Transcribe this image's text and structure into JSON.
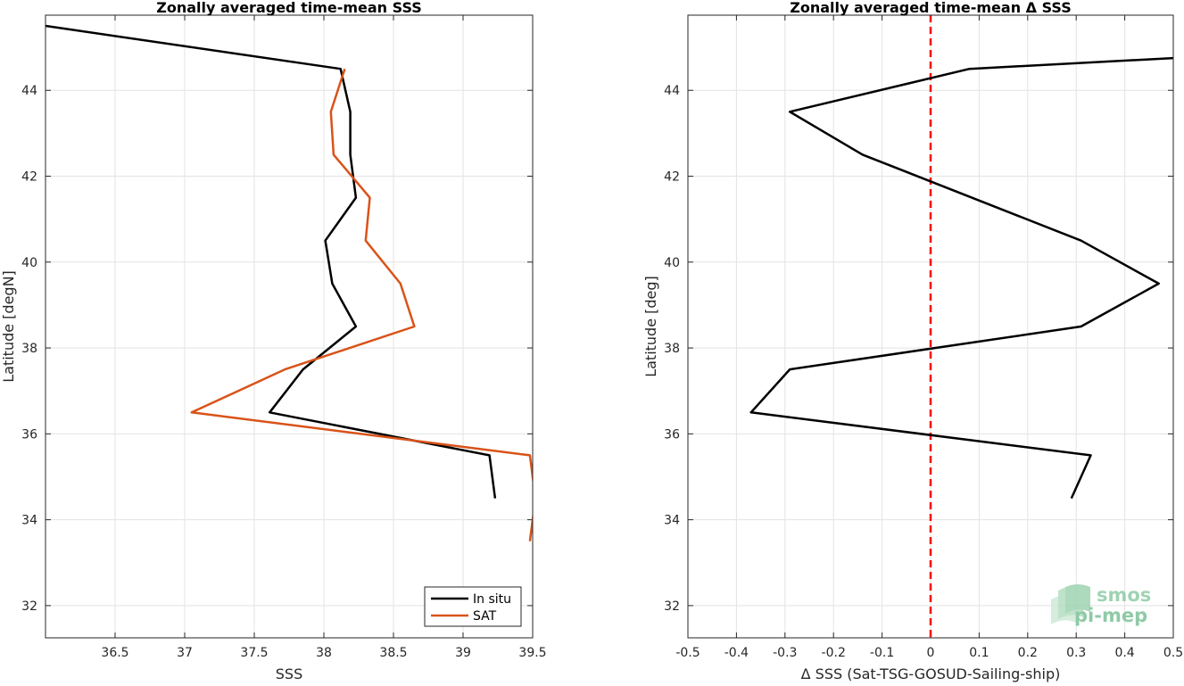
{
  "chart_data": [
    {
      "type": "line",
      "title": "Zonally averaged time-mean SSS",
      "xlabel": "SSS",
      "ylabel": "Latitude [degN]",
      "xlim": [
        36.0,
        39.5
      ],
      "ylim": [
        31.25,
        45.75
      ],
      "xticks": [
        36.5,
        37,
        37.5,
        38,
        38.5,
        39,
        39.5
      ],
      "xtick_labels": [
        "36.5",
        "37",
        "37.5",
        "38",
        "38.5",
        "39",
        "39.5"
      ],
      "yticks": [
        32,
        34,
        36,
        38,
        40,
        42,
        44
      ],
      "ytick_labels": [
        "32",
        "34",
        "36",
        "38",
        "40",
        "42",
        "44"
      ],
      "grid": true,
      "legend_position": "bottom-right",
      "series": [
        {
          "name": "In situ",
          "color": "#000000",
          "x": [
            36.0,
            38.12,
            38.19,
            38.19,
            38.23,
            38.01,
            38.06,
            38.23,
            37.85,
            37.61,
            39.19,
            39.23
          ],
          "y": [
            45.5,
            44.5,
            43.5,
            42.5,
            41.5,
            40.5,
            39.5,
            38.5,
            37.5,
            36.5,
            35.5,
            34.5
          ]
        },
        {
          "name": "SAT",
          "color": "#d95319",
          "x": [
            38.15,
            38.05,
            38.07,
            38.33,
            38.3,
            38.55,
            38.65,
            37.72,
            37.05,
            39.48,
            39.52,
            39.48
          ],
          "y": [
            44.5,
            43.5,
            42.5,
            41.5,
            40.5,
            39.5,
            38.5,
            37.5,
            36.5,
            35.5,
            34.5,
            33.5
          ]
        }
      ]
    },
    {
      "type": "line",
      "title": "Zonally averaged time-mean Δ SSS",
      "xlabel": "Δ SSS (Sat-TSG-GOSUD-Sailing-ship)",
      "ylabel": "Latitude [deg]",
      "xlim": [
        -0.5,
        0.5
      ],
      "ylim": [
        31.25,
        45.75
      ],
      "xticks": [
        -0.5,
        -0.4,
        -0.3,
        -0.2,
        -0.1,
        0,
        0.1,
        0.2,
        0.3,
        0.4,
        0.5
      ],
      "xtick_labels": [
        "-0.5",
        "-0.4",
        "-0.3",
        "-0.2",
        "-0.1",
        "0",
        "0.1",
        "0.2",
        "0.3",
        "0.4",
        "0.5"
      ],
      "yticks": [
        32,
        34,
        36,
        38,
        40,
        42,
        44
      ],
      "ytick_labels": [
        "32",
        "34",
        "36",
        "38",
        "40",
        "42",
        "44"
      ],
      "grid": true,
      "reference_line": {
        "x": 0,
        "color": "#ff0000",
        "style": "dashed"
      },
      "series": [
        {
          "color": "#000000",
          "x": [
            0.5,
            0.08,
            -0.29,
            -0.14,
            0.31,
            0.47,
            0.31,
            -0.29,
            -0.37,
            0.33,
            0.29
          ],
          "y": [
            44.75,
            44.5,
            43.5,
            42.5,
            40.5,
            39.5,
            38.5,
            37.5,
            36.5,
            35.5,
            34.5
          ]
        }
      ]
    }
  ],
  "logo": {
    "line1": "smos",
    "line2": "pi-mep",
    "color": "#7cc197"
  }
}
